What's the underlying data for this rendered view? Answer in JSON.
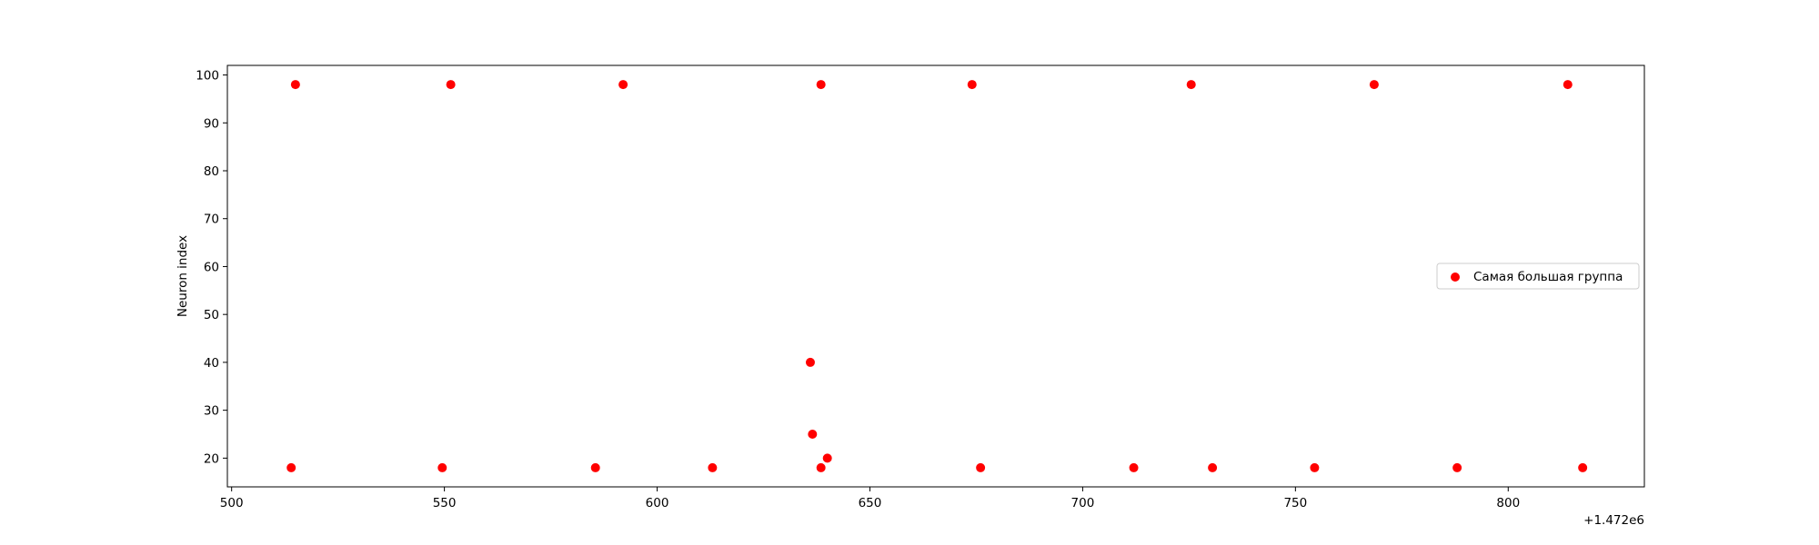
{
  "chart_data": {
    "type": "scatter",
    "title": "",
    "xlabel": "",
    "ylabel": "Neuron index",
    "x_offset_label": "+1.472e6",
    "xlim": [
      499,
      832
    ],
    "ylim": [
      14,
      102
    ],
    "xticks": [
      500,
      550,
      600,
      650,
      700,
      750,
      800
    ],
    "yticks": [
      20,
      30,
      40,
      50,
      60,
      70,
      80,
      90,
      100
    ],
    "grid": false,
    "legend_position": "center-right",
    "series": [
      {
        "name": "Самая большая группа",
        "color": "#ff0000",
        "points": [
          {
            "x": 515,
            "y": 98
          },
          {
            "x": 551.5,
            "y": 98
          },
          {
            "x": 592,
            "y": 98
          },
          {
            "x": 638.5,
            "y": 98
          },
          {
            "x": 674,
            "y": 98
          },
          {
            "x": 725.5,
            "y": 98
          },
          {
            "x": 768.5,
            "y": 98
          },
          {
            "x": 814,
            "y": 98
          },
          {
            "x": 636,
            "y": 40
          },
          {
            "x": 636.5,
            "y": 25
          },
          {
            "x": 640,
            "y": 20
          },
          {
            "x": 514,
            "y": 18
          },
          {
            "x": 549.5,
            "y": 18
          },
          {
            "x": 585.5,
            "y": 18
          },
          {
            "x": 613,
            "y": 18
          },
          {
            "x": 638.5,
            "y": 18
          },
          {
            "x": 676,
            "y": 18
          },
          {
            "x": 712,
            "y": 18
          },
          {
            "x": 730.5,
            "y": 18
          },
          {
            "x": 754.5,
            "y": 18
          },
          {
            "x": 788,
            "y": 18
          },
          {
            "x": 817.5,
            "y": 18
          }
        ]
      }
    ]
  }
}
